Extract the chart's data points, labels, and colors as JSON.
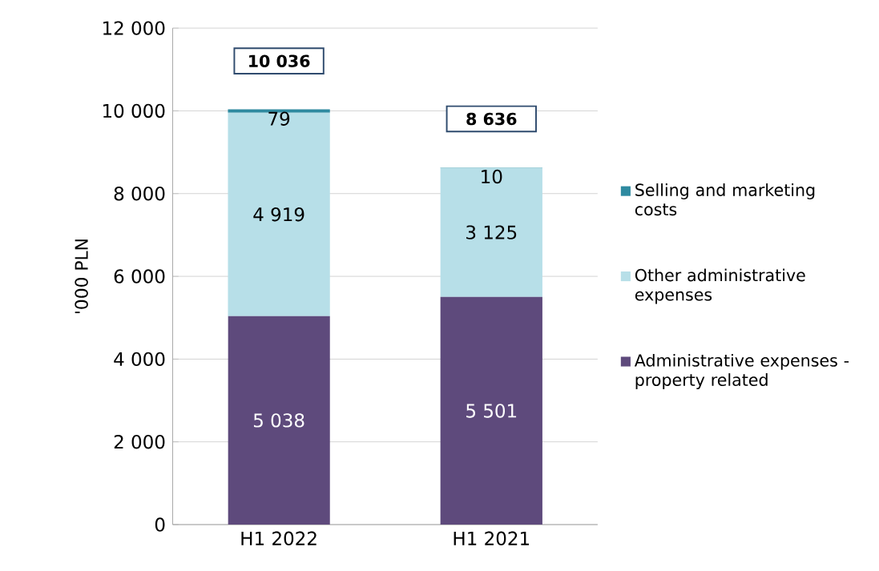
{
  "chart_data": {
    "type": "bar",
    "stacked": true,
    "ylabel": "'000 PLN",
    "categories": [
      "H1 2022",
      "H1 2021"
    ],
    "series": [
      {
        "name": "Administrative expenses - property related",
        "color": "#5e4a7c",
        "values": [
          5038,
          5501
        ],
        "value_labels": [
          "5 038",
          "5 501"
        ]
      },
      {
        "name": "Other administrative expenses",
        "color": "#b7dfe8",
        "values": [
          4919,
          3125
        ],
        "value_labels": [
          "4 919",
          "3 125"
        ]
      },
      {
        "name": "Selling and marketing costs",
        "color": "#2e8aa0",
        "values": [
          79,
          10
        ],
        "value_labels": [
          "79",
          "10"
        ]
      }
    ],
    "totals": [
      "10 036",
      "8 636"
    ],
    "ylim": [
      0,
      12000
    ],
    "yticks": [
      {
        "value": 0,
        "label": "0"
      },
      {
        "value": 2000,
        "label": "2 000"
      },
      {
        "value": 4000,
        "label": "4 000"
      },
      {
        "value": 6000,
        "label": "6 000"
      },
      {
        "value": 8000,
        "label": "8 000"
      },
      {
        "value": 10000,
        "label": "10 000"
      },
      {
        "value": 12000,
        "label": "12 000"
      }
    ],
    "grid": "y",
    "legend": "right"
  }
}
